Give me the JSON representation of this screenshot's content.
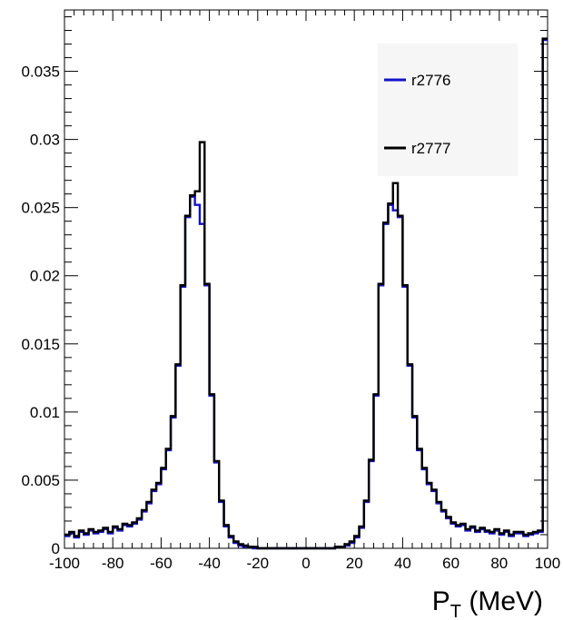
{
  "chart_data": {
    "type": "line",
    "title": "",
    "xlabel": "P_T (MeV)",
    "xlabel_main": "P",
    "xlabel_sub": "T",
    "xlabel_unit": " (MeV)",
    "ylabel": "",
    "xlim": [
      -100,
      100
    ],
    "ylim": [
      0,
      0.0395
    ],
    "x_ticks": [
      -100,
      -80,
      -60,
      -40,
      -20,
      0,
      20,
      40,
      60,
      80,
      100
    ],
    "x_tick_labels": [
      "-100",
      "-80",
      "-60",
      "-40",
      "-20",
      "0",
      "20",
      "40",
      "60",
      "80",
      "100"
    ],
    "y_ticks": [
      0,
      0.005,
      0.01,
      0.015,
      0.02,
      0.025,
      0.03,
      0.035
    ],
    "y_tick_labels": [
      "0",
      "0.005",
      "0.01",
      "0.015",
      "0.02",
      "0.025",
      "0.03",
      "0.035"
    ],
    "grid": false,
    "legend_position": "top-right",
    "x": [
      -100,
      -98,
      -96,
      -94,
      -92,
      -90,
      -88,
      -86,
      -84,
      -82,
      -80,
      -78,
      -76,
      -74,
      -72,
      -70,
      -68,
      -66,
      -64,
      -62,
      -60,
      -58,
      -56,
      -54,
      -52,
      -50,
      -48,
      -46,
      -44,
      -42,
      -40,
      -38,
      -36,
      -34,
      -32,
      -30,
      -28,
      -26,
      -24,
      -22,
      -20,
      -18,
      -16,
      -14,
      -12,
      -10,
      -8,
      -6,
      -4,
      -2,
      0,
      2,
      4,
      6,
      8,
      10,
      12,
      14,
      16,
      18,
      20,
      22,
      24,
      26,
      28,
      30,
      32,
      34,
      36,
      38,
      40,
      42,
      44,
      46,
      48,
      50,
      52,
      54,
      56,
      58,
      60,
      62,
      64,
      66,
      68,
      70,
      72,
      74,
      76,
      78,
      80,
      82,
      84,
      86,
      88,
      90,
      92,
      94,
      96,
      98
    ],
    "series": [
      {
        "name": "r2776",
        "color": "#1212cc",
        "values": [
          0.0009,
          0.0011,
          0.0008,
          0.0012,
          0.001,
          0.0013,
          0.0011,
          0.0012,
          0.0014,
          0.0011,
          0.0015,
          0.0013,
          0.0017,
          0.0016,
          0.0018,
          0.0021,
          0.0027,
          0.0033,
          0.0042,
          0.0047,
          0.0058,
          0.0072,
          0.0096,
          0.0134,
          0.0192,
          0.0243,
          0.0258,
          0.0252,
          0.0238,
          0.0193,
          0.0112,
          0.0063,
          0.0034,
          0.0016,
          0.0008,
          0.0004,
          0.0002,
          0.0001,
          0.0001,
          0.0,
          0.0,
          0.0,
          0.0,
          0.0,
          0.0,
          0.0,
          0.0,
          0.0,
          0.0,
          0.0,
          0.0,
          0.0,
          0.0,
          0.0,
          0.0,
          0.0,
          0.0001,
          0.0001,
          0.0002,
          0.0004,
          0.0008,
          0.0015,
          0.0034,
          0.0064,
          0.0112,
          0.0193,
          0.0238,
          0.0252,
          0.0248,
          0.0243,
          0.0192,
          0.0134,
          0.0096,
          0.0072,
          0.0058,
          0.0047,
          0.0042,
          0.0033,
          0.0027,
          0.0022,
          0.0018,
          0.0016,
          0.0017,
          0.0013,
          0.0015,
          0.0012,
          0.0014,
          0.0012,
          0.0011,
          0.0013,
          0.001,
          0.0012,
          0.0009,
          0.0011,
          0.0011,
          0.0009,
          0.001,
          0.0011,
          0.0012,
          0.0373
        ]
      },
      {
        "name": "r2777",
        "color": "#000000",
        "values": [
          0.001,
          0.0012,
          0.0009,
          0.0013,
          0.0011,
          0.0014,
          0.0012,
          0.0013,
          0.0015,
          0.0012,
          0.0016,
          0.0014,
          0.0018,
          0.0017,
          0.0019,
          0.0022,
          0.0028,
          0.0034,
          0.0043,
          0.0048,
          0.0059,
          0.0073,
          0.0097,
          0.0135,
          0.0193,
          0.0244,
          0.0259,
          0.0262,
          0.0298,
          0.0194,
          0.0113,
          0.0064,
          0.0035,
          0.0017,
          0.0009,
          0.0005,
          0.0003,
          0.0002,
          0.0001,
          0.0001,
          0.0,
          0.0,
          0.0,
          0.0,
          0.0,
          0.0,
          0.0,
          0.0,
          0.0,
          0.0,
          0.0,
          0.0,
          0.0,
          0.0,
          0.0,
          0.0,
          0.0001,
          0.0001,
          0.0003,
          0.0005,
          0.0009,
          0.0016,
          0.0035,
          0.0065,
          0.0113,
          0.0194,
          0.0239,
          0.0253,
          0.0268,
          0.0244,
          0.0193,
          0.0135,
          0.0097,
          0.0073,
          0.0059,
          0.0048,
          0.0043,
          0.0034,
          0.0028,
          0.0023,
          0.0019,
          0.0017,
          0.0018,
          0.0014,
          0.0016,
          0.0013,
          0.0015,
          0.0013,
          0.0012,
          0.0014,
          0.0011,
          0.0013,
          0.001,
          0.0012,
          0.0012,
          0.001,
          0.0011,
          0.0012,
          0.0013,
          0.0374
        ]
      }
    ]
  }
}
